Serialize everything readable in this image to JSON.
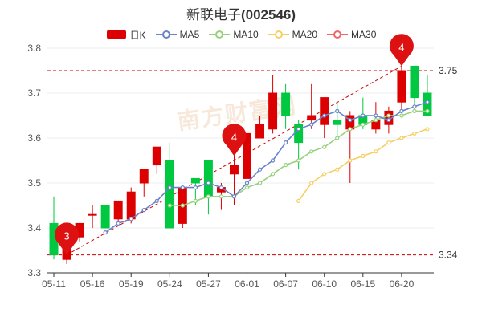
{
  "title": {
    "name": "新联电子",
    "code": "(002546)"
  },
  "watermark": "南方财富网",
  "legend": [
    {
      "key": "candle",
      "label": "日K",
      "color": "#dd0000",
      "kind": "rect"
    },
    {
      "key": "ma5",
      "label": "MA5",
      "color": "#6a83c9",
      "kind": "circle"
    },
    {
      "key": "ma10",
      "label": "MA10",
      "color": "#98d17c",
      "kind": "circle"
    },
    {
      "key": "ma20",
      "label": "MA20",
      "color": "#f6cf62",
      "kind": "circle"
    },
    {
      "key": "ma30",
      "label": "MA30",
      "color": "#ee6666",
      "kind": "circle"
    }
  ],
  "colors": {
    "up": "#dd0000",
    "down": "#00c840",
    "grid": "#e9ecf2",
    "axis": "#333333",
    "ref": "#cc0000"
  },
  "chart_data": {
    "type": "candlestick",
    "ylim": [
      3.3,
      3.8
    ],
    "yticks": [
      3.3,
      3.4,
      3.5,
      3.6,
      3.7,
      3.8
    ],
    "xtick_labels": [
      "05-11",
      "05-16",
      "05-19",
      "05-24",
      "05-27",
      "06-01",
      "06-07",
      "06-10",
      "06-15",
      "06-20"
    ],
    "xtick_indices": [
      0,
      3,
      6,
      9,
      12,
      15,
      18,
      21,
      24,
      27
    ],
    "candles": [
      {
        "o": 3.41,
        "c": 3.34,
        "h": 3.47,
        "l": 3.33
      },
      {
        "o": 3.33,
        "c": 3.36,
        "h": 3.37,
        "l": 3.32
      },
      {
        "o": 3.38,
        "c": 3.41,
        "h": 3.41,
        "l": 3.37
      },
      {
        "o": 3.43,
        "c": 3.43,
        "h": 3.45,
        "l": 3.4
      },
      {
        "o": 3.45,
        "c": 3.4,
        "h": 3.45,
        "l": 3.4
      },
      {
        "o": 3.42,
        "c": 3.46,
        "h": 3.46,
        "l": 3.41
      },
      {
        "o": 3.42,
        "c": 3.48,
        "h": 3.49,
        "l": 3.41
      },
      {
        "o": 3.5,
        "c": 3.53,
        "h": 3.53,
        "l": 3.47
      },
      {
        "o": 3.54,
        "c": 3.58,
        "h": 3.58,
        "l": 3.52
      },
      {
        "o": 3.55,
        "c": 3.4,
        "h": 3.59,
        "l": 3.4
      },
      {
        "o": 3.41,
        "c": 3.49,
        "h": 3.49,
        "l": 3.4
      },
      {
        "o": 3.51,
        "c": 3.5,
        "h": 3.51,
        "l": 3.45
      },
      {
        "o": 3.55,
        "c": 3.47,
        "h": 3.55,
        "l": 3.43
      },
      {
        "o": 3.48,
        "c": 3.49,
        "h": 3.5,
        "l": 3.44
      },
      {
        "o": 3.52,
        "c": 3.54,
        "h": 3.56,
        "l": 3.45
      },
      {
        "o": 3.51,
        "c": 3.61,
        "h": 3.62,
        "l": 3.5
      },
      {
        "o": 3.6,
        "c": 3.63,
        "h": 3.65,
        "l": 3.6
      },
      {
        "o": 3.62,
        "c": 3.7,
        "h": 3.74,
        "l": 3.61
      },
      {
        "o": 3.7,
        "c": 3.65,
        "h": 3.72,
        "l": 3.62
      },
      {
        "o": 3.63,
        "c": 3.59,
        "h": 3.64,
        "l": 3.53
      },
      {
        "o": 3.64,
        "c": 3.65,
        "h": 3.72,
        "l": 3.62
      },
      {
        "o": 3.63,
        "c": 3.69,
        "h": 3.69,
        "l": 3.6
      },
      {
        "o": 3.64,
        "c": 3.63,
        "h": 3.68,
        "l": 3.6
      },
      {
        "o": 3.62,
        "c": 3.65,
        "h": 3.66,
        "l": 3.5
      },
      {
        "o": 3.65,
        "c": 3.63,
        "h": 3.69,
        "l": 3.62
      },
      {
        "o": 3.62,
        "c": 3.64,
        "h": 3.68,
        "l": 3.61
      },
      {
        "o": 3.63,
        "c": 3.66,
        "h": 3.67,
        "l": 3.61
      },
      {
        "o": 3.68,
        "c": 3.75,
        "h": 3.76,
        "l": 3.66
      },
      {
        "o": 3.76,
        "c": 3.69,
        "h": 3.76,
        "l": 3.66
      },
      {
        "o": 3.7,
        "c": 3.65,
        "h": 3.74,
        "l": 3.65
      }
    ],
    "ma5": [
      null,
      null,
      null,
      null,
      3.39,
      3.41,
      3.42,
      3.44,
      3.46,
      3.49,
      3.49,
      3.49,
      3.5,
      3.49,
      3.47,
      3.5,
      3.53,
      3.55,
      3.59,
      3.62,
      3.63,
      3.65,
      3.66,
      3.64,
      3.65,
      3.65,
      3.64,
      3.66,
      3.67,
      3.68
    ],
    "ma10": [
      null,
      null,
      null,
      null,
      null,
      null,
      null,
      null,
      null,
      3.45,
      3.45,
      3.46,
      3.47,
      3.47,
      3.47,
      3.49,
      3.5,
      3.52,
      3.54,
      3.55,
      3.57,
      3.58,
      3.6,
      3.62,
      3.63,
      3.64,
      3.65,
      3.65,
      3.66,
      3.66
    ],
    "ma20": [
      null,
      null,
      null,
      null,
      null,
      null,
      null,
      null,
      null,
      null,
      null,
      null,
      null,
      null,
      null,
      null,
      null,
      null,
      null,
      3.46,
      3.5,
      3.52,
      3.53,
      3.55,
      3.56,
      3.57,
      3.59,
      3.6,
      3.61,
      3.62
    ],
    "ma30": [],
    "ref_lines": [
      {
        "label": "3.75",
        "value": 3.75
      },
      {
        "label": "3.34",
        "value": 3.34
      }
    ],
    "markers": [
      {
        "index": 1,
        "value": 3.34,
        "label": "3"
      },
      {
        "index": 14,
        "value": 3.56,
        "label": "4"
      },
      {
        "index": 27,
        "value": 3.76,
        "label": "4"
      }
    ]
  }
}
